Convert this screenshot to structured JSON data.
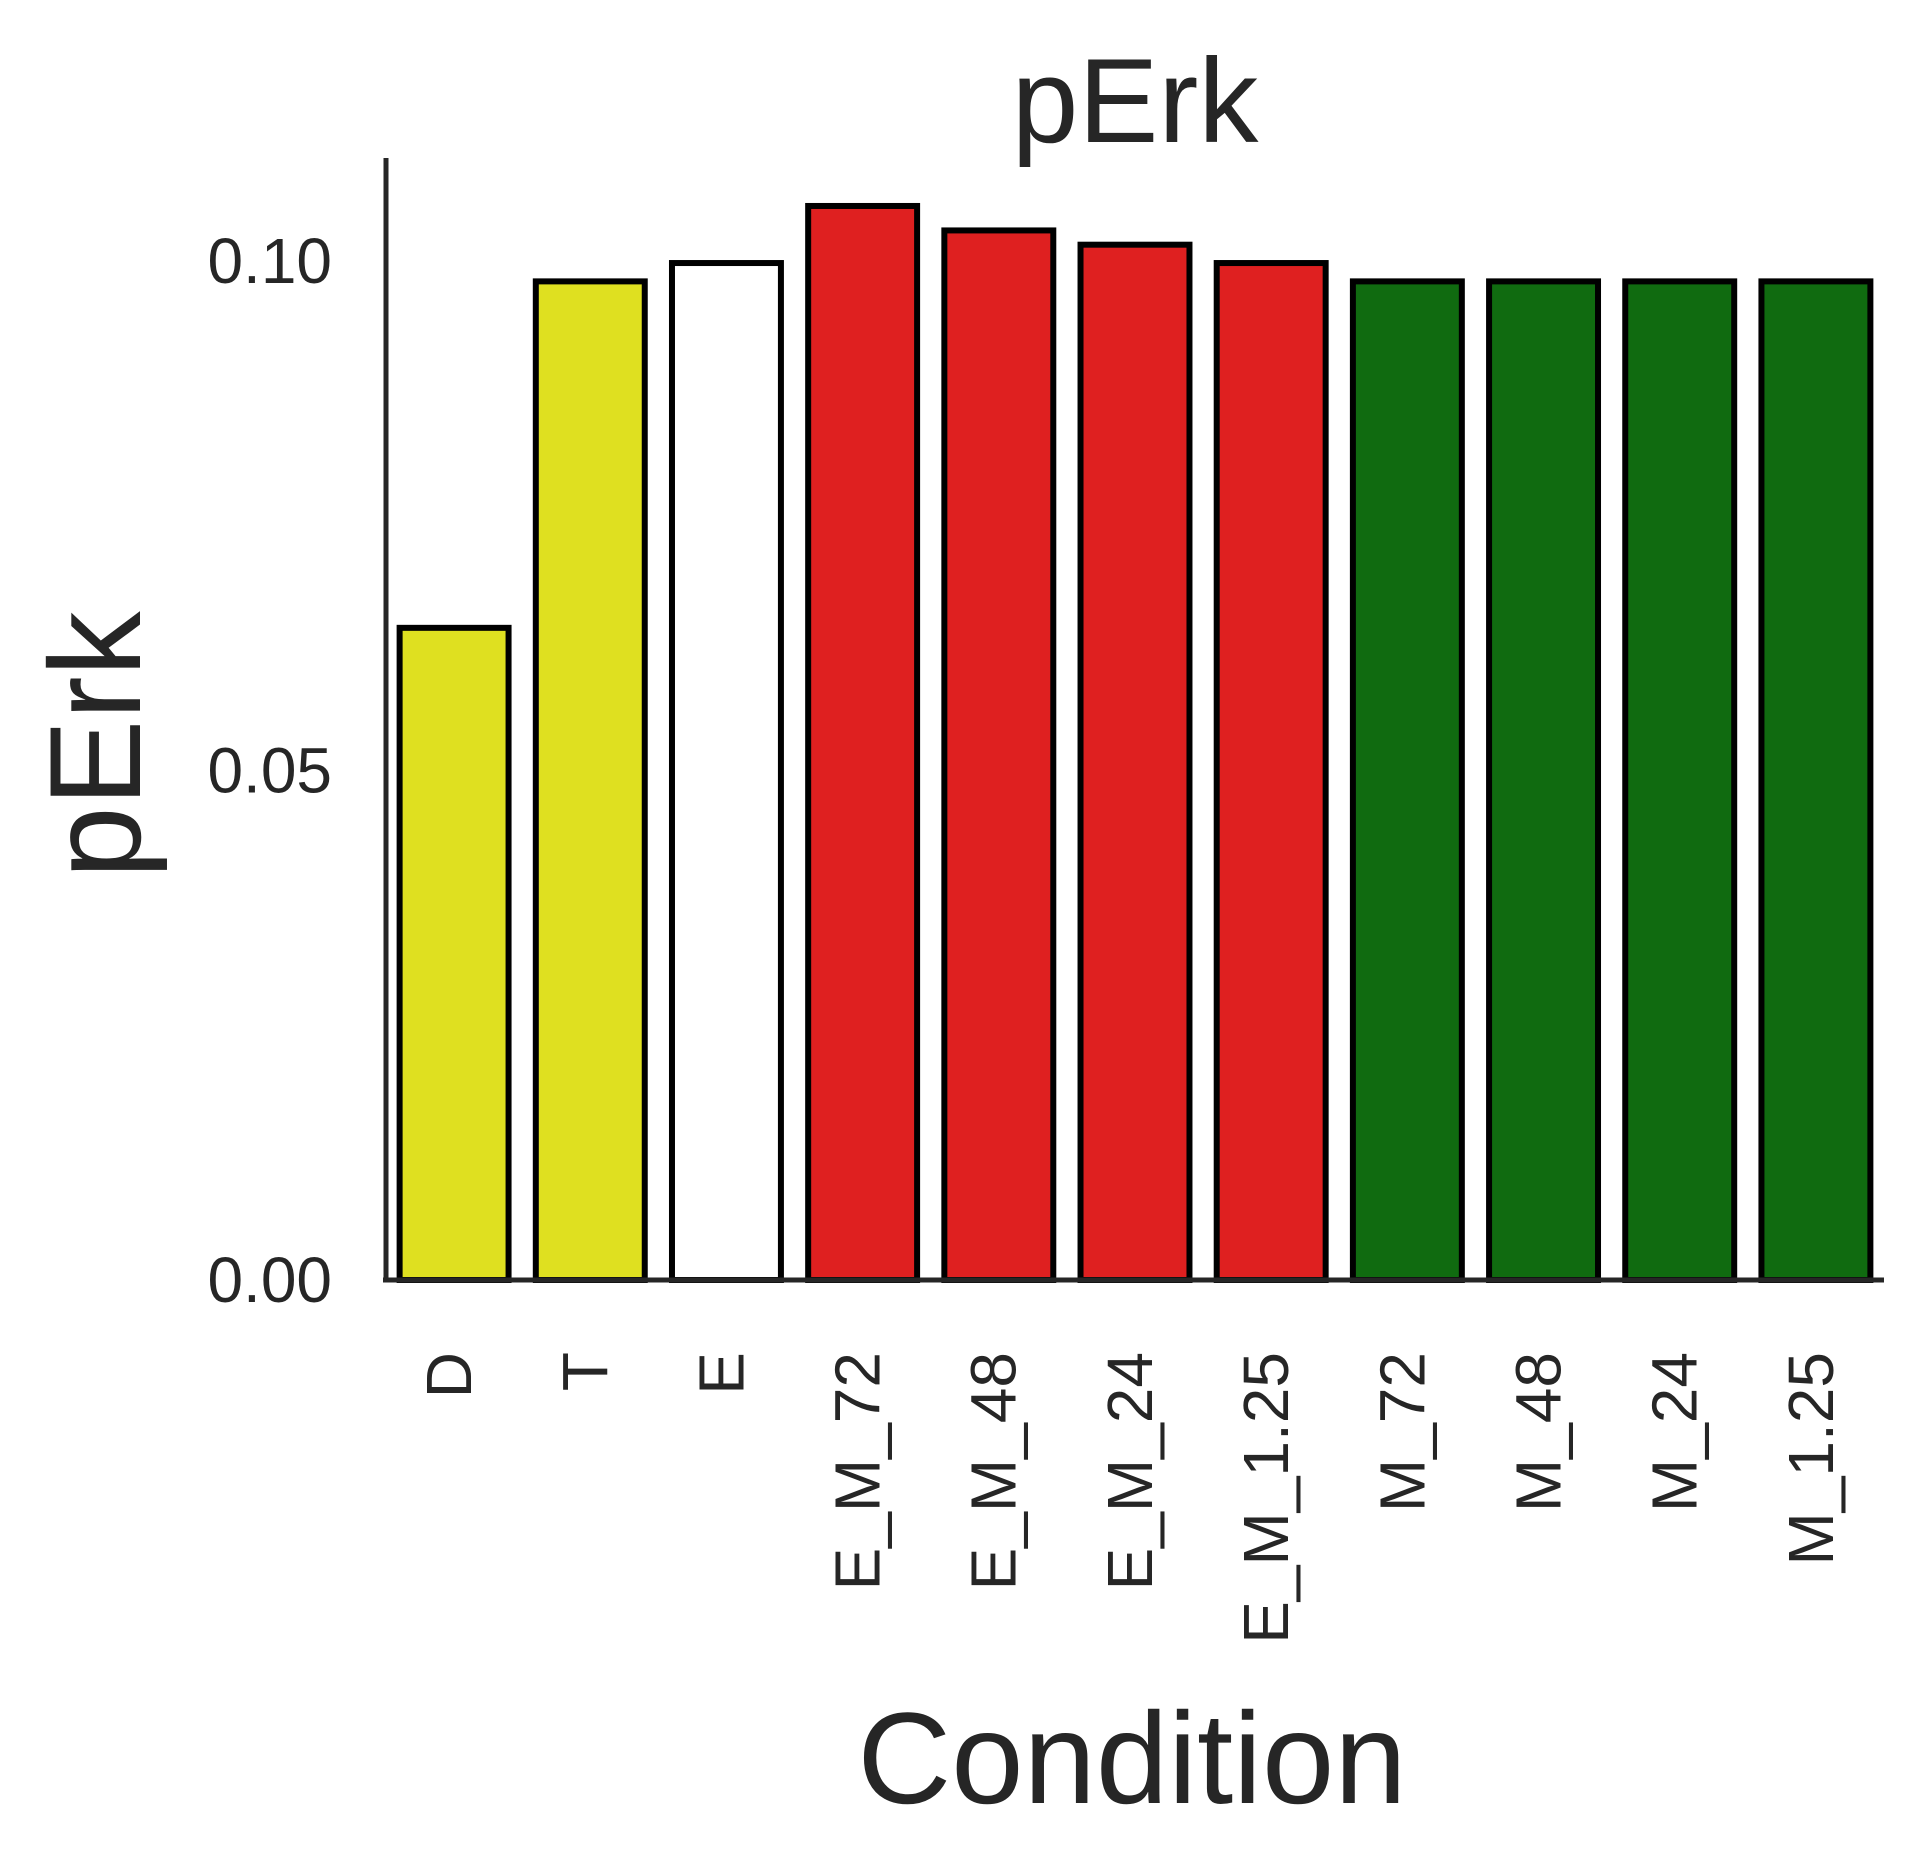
{
  "chart_data": {
    "type": "bar",
    "title": "pErk",
    "xlabel": "Condition",
    "ylabel": "pErk",
    "ylim": [
      0,
      0.11
    ],
    "yticks": [
      "0.00",
      "0.05",
      "0.10"
    ],
    "yticks_values": [
      0.0,
      0.05,
      0.1
    ],
    "grid": false,
    "categories": [
      "D",
      "T",
      "E",
      "E_M_72",
      "E_M_48",
      "E_M_24",
      "E_M_1.25",
      "M_72",
      "M_48",
      "M_24",
      "M_1.25"
    ],
    "values": [
      0.064,
      0.098,
      0.0998,
      0.1054,
      0.103,
      0.1016,
      0.0998,
      0.098,
      0.098,
      0.098,
      0.098
    ],
    "colors": [
      "#dfe020",
      "#dfe020",
      "#ffffff",
      "#df2020",
      "#df2020",
      "#df2020",
      "#df2020",
      "#106b10",
      "#106b10",
      "#106b10",
      "#106b10"
    ],
    "edge_color": "#000000",
    "axis_color": "#262626"
  }
}
